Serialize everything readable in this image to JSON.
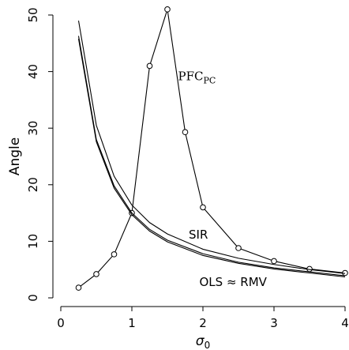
{
  "chart_data": {
    "type": "line",
    "title": "",
    "xlabel": "σ",
    "xlabel_sub": "0",
    "ylabel": "Angle",
    "xlim": [
      0,
      4
    ],
    "ylim": [
      0,
      50
    ],
    "xticks": [
      0,
      1,
      2,
      3,
      4
    ],
    "yticks": [
      0,
      10,
      20,
      30,
      40,
      50
    ],
    "grid": false,
    "series": [
      {
        "id": "pfc",
        "markers": true,
        "points": [
          {
            "x": 0.25,
            "y": 1.8
          },
          {
            "x": 0.5,
            "y": 4.2
          },
          {
            "x": 0.75,
            "y": 7.7
          },
          {
            "x": 1.0,
            "y": 15.0
          },
          {
            "x": 1.25,
            "y": 41.0
          },
          {
            "x": 1.5,
            "y": 51.0
          },
          {
            "x": 1.75,
            "y": 29.3
          },
          {
            "x": 2.0,
            "y": 16.0
          },
          {
            "x": 2.5,
            "y": 8.8
          },
          {
            "x": 3.0,
            "y": 6.5
          },
          {
            "x": 3.5,
            "y": 5.1
          },
          {
            "x": 4.0,
            "y": 4.4
          }
        ]
      },
      {
        "id": "sir",
        "markers": false,
        "points": [
          {
            "x": 0.25,
            "y": 49.0
          },
          {
            "x": 0.5,
            "y": 30.5
          },
          {
            "x": 0.75,
            "y": 21.5
          },
          {
            "x": 1.0,
            "y": 16.4
          },
          {
            "x": 1.25,
            "y": 13.3
          },
          {
            "x": 1.5,
            "y": 11.3
          },
          {
            "x": 2.0,
            "y": 8.6
          },
          {
            "x": 2.5,
            "y": 7.0
          },
          {
            "x": 3.0,
            "y": 5.9
          },
          {
            "x": 3.5,
            "y": 5.0
          },
          {
            "x": 4.0,
            "y": 4.3
          }
        ]
      },
      {
        "id": "ols",
        "markers": false,
        "points": [
          {
            "x": 0.25,
            "y": 46.3
          },
          {
            "x": 0.5,
            "y": 28.0
          },
          {
            "x": 0.75,
            "y": 19.8
          },
          {
            "x": 1.0,
            "y": 15.0
          },
          {
            "x": 1.25,
            "y": 12.1
          },
          {
            "x": 1.5,
            "y": 10.2
          },
          {
            "x": 2.0,
            "y": 7.8
          },
          {
            "x": 2.5,
            "y": 6.3
          },
          {
            "x": 3.0,
            "y": 5.3
          },
          {
            "x": 3.5,
            "y": 4.6
          },
          {
            "x": 4.0,
            "y": 3.9
          }
        ]
      },
      {
        "id": "rmv",
        "markers": false,
        "points": [
          {
            "x": 0.25,
            "y": 45.8
          },
          {
            "x": 0.5,
            "y": 27.6
          },
          {
            "x": 0.75,
            "y": 19.4
          },
          {
            "x": 1.0,
            "y": 14.7
          },
          {
            "x": 1.25,
            "y": 11.8
          },
          {
            "x": 1.5,
            "y": 9.9
          },
          {
            "x": 2.0,
            "y": 7.5
          },
          {
            "x": 2.5,
            "y": 6.1
          },
          {
            "x": 3.0,
            "y": 5.1
          },
          {
            "x": 3.5,
            "y": 4.4
          },
          {
            "x": 4.0,
            "y": 3.7
          }
        ]
      }
    ],
    "annotations": [
      {
        "id": "pfc-label",
        "text": "PFC",
        "sub": "PC",
        "x": 1.65,
        "y": 38.5
      },
      {
        "id": "sir-label",
        "text": "SIR",
        "x": 1.8,
        "y": 10.5
      },
      {
        "id": "ols-label",
        "text": "OLS ≈ RMV",
        "x": 1.95,
        "y": 2.1
      }
    ]
  }
}
